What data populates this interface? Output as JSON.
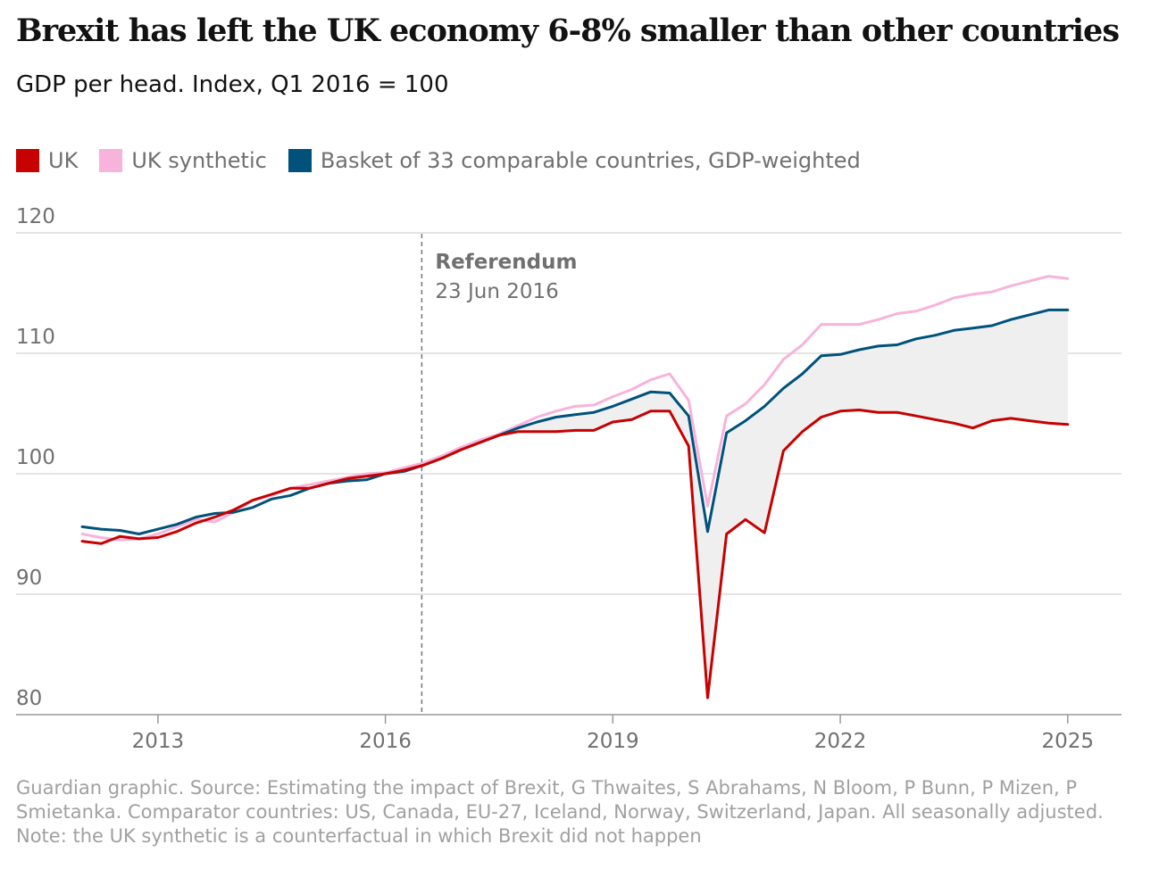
{
  "header": {
    "title": "Brexit has left the UK economy 6-8% smaller than other countries",
    "subtitle": "GDP per head. Index, Q1 2016 = 100"
  },
  "legend": [
    {
      "label": "UK",
      "color": "#c70000"
    },
    {
      "label": "UK synthetic",
      "color": "#f7b3db"
    },
    {
      "label": "Basket of 33 comparable countries, GDP-weighted",
      "color": "#00527a"
    }
  ],
  "annotation": {
    "title": "Referendum",
    "date": "23 Jun 2016"
  },
  "footnote": {
    "line1": "Guardian graphic. Source: Estimating the impact of Brexit, G Thwaites, S Abrahams, N Bloom, P Bunn, P Mizen, P",
    "line2": "Smietanka. Comparator countries: US, Canada, EU-27, Iceland, Norway, Switzerland, Japan. All seasonally adjusted.",
    "line3": "Note: the UK synthetic is a counterfactual in which Brexit did not happen"
  },
  "chart_data": {
    "type": "line",
    "ylim": [
      80,
      120
    ],
    "xlim": [
      2012.0,
      2025.25
    ],
    "yticks": [
      "120",
      "110",
      "100",
      "90",
      "80"
    ],
    "ytick_values": [
      120,
      110,
      100,
      90,
      80
    ],
    "xticks": [
      "2013",
      "2016",
      "2019",
      "2022",
      "2025"
    ],
    "xtick_values": [
      2013,
      2016,
      2019,
      2022,
      2025
    ],
    "grid": true,
    "referendum_x": 2016.48,
    "shaded_gap": "between UK and Basket",
    "series": [
      {
        "name": "UK synthetic",
        "color": "#f7b3db",
        "x": [
          2012.0,
          2012.25,
          2012.5,
          2012.75,
          2013.0,
          2013.25,
          2013.5,
          2013.75,
          2014.0,
          2014.25,
          2014.5,
          2014.75,
          2015.0,
          2015.25,
          2015.5,
          2015.75,
          2016.0,
          2016.25,
          2016.5,
          2016.75,
          2017.0,
          2017.25,
          2017.5,
          2017.75,
          2018.0,
          2018.25,
          2018.5,
          2018.75,
          2019.0,
          2019.25,
          2019.5,
          2019.75,
          2020.0,
          2020.25,
          2020.5,
          2020.75,
          2021.0,
          2021.25,
          2021.5,
          2021.75,
          2022.0,
          2022.25,
          2022.5,
          2022.75,
          2023.0,
          2023.25,
          2023.5,
          2023.75,
          2024.0,
          2024.25,
          2024.5,
          2024.75,
          2025.0
        ],
        "values": [
          95.0,
          94.7,
          94.5,
          94.6,
          95.0,
          95.6,
          96.2,
          96.0,
          96.8,
          97.8,
          98.2,
          98.8,
          99.1,
          99.4,
          99.7,
          100.0,
          100.1,
          100.5,
          100.9,
          101.5,
          102.2,
          102.8,
          103.3,
          104.0,
          104.7,
          105.2,
          105.6,
          105.7,
          106.4,
          107.0,
          107.8,
          108.3,
          106.1,
          97.3,
          104.8,
          105.8,
          107.4,
          109.5,
          110.7,
          112.4,
          112.4,
          112.4,
          112.8,
          113.3,
          113.5,
          114.0,
          114.6,
          114.9,
          115.1,
          115.6,
          116.0,
          116.4,
          116.2
        ]
      },
      {
        "name": "Basket of 33 comparable countries, GDP-weighted",
        "color": "#00527a",
        "x": [
          2012.0,
          2012.25,
          2012.5,
          2012.75,
          2013.0,
          2013.25,
          2013.5,
          2013.75,
          2014.0,
          2014.25,
          2014.5,
          2014.75,
          2015.0,
          2015.25,
          2015.5,
          2015.75,
          2016.0,
          2016.25,
          2016.5,
          2016.75,
          2017.0,
          2017.25,
          2017.5,
          2017.75,
          2018.0,
          2018.25,
          2018.5,
          2018.75,
          2019.0,
          2019.25,
          2019.5,
          2019.75,
          2020.0,
          2020.25,
          2020.5,
          2020.75,
          2021.0,
          2021.25,
          2021.5,
          2021.75,
          2022.0,
          2022.25,
          2022.5,
          2022.75,
          2023.0,
          2023.25,
          2023.5,
          2023.75,
          2024.0,
          2024.25,
          2024.5,
          2024.75,
          2025.0
        ],
        "values": [
          95.6,
          95.4,
          95.3,
          95.0,
          95.4,
          95.8,
          96.4,
          96.7,
          96.8,
          97.2,
          97.9,
          98.2,
          98.8,
          99.2,
          99.4,
          99.5,
          100.0,
          100.2,
          100.7,
          101.3,
          102.0,
          102.6,
          103.2,
          103.8,
          104.3,
          104.7,
          104.9,
          105.1,
          105.6,
          106.2,
          106.8,
          106.7,
          104.8,
          95.2,
          103.4,
          104.4,
          105.6,
          107.1,
          108.3,
          109.8,
          109.9,
          110.3,
          110.6,
          110.7,
          111.2,
          111.5,
          111.9,
          112.1,
          112.3,
          112.8,
          113.2,
          113.6,
          113.6
        ]
      },
      {
        "name": "UK",
        "color": "#c70000",
        "x": [
          2012.0,
          2012.25,
          2012.5,
          2012.75,
          2013.0,
          2013.25,
          2013.5,
          2013.75,
          2014.0,
          2014.25,
          2014.5,
          2014.75,
          2015.0,
          2015.25,
          2015.5,
          2015.75,
          2016.0,
          2016.25,
          2016.5,
          2016.75,
          2017.0,
          2017.25,
          2017.5,
          2017.75,
          2018.0,
          2018.25,
          2018.5,
          2018.75,
          2019.0,
          2019.25,
          2019.5,
          2019.75,
          2020.0,
          2020.25,
          2020.5,
          2020.75,
          2021.0,
          2021.25,
          2021.5,
          2021.75,
          2022.0,
          2022.25,
          2022.5,
          2022.75,
          2023.0,
          2023.25,
          2023.5,
          2023.75,
          2024.0,
          2024.25,
          2024.5,
          2024.75,
          2025.0
        ],
        "values": [
          94.4,
          94.2,
          94.8,
          94.6,
          94.7,
          95.2,
          95.9,
          96.4,
          97.0,
          97.8,
          98.3,
          98.8,
          98.8,
          99.2,
          99.6,
          99.8,
          100.0,
          100.3,
          100.7,
          101.3,
          102.0,
          102.6,
          103.2,
          103.5,
          103.5,
          103.5,
          103.6,
          103.6,
          104.3,
          104.5,
          105.2,
          105.2,
          102.3,
          81.4,
          95.0,
          96.2,
          95.1,
          101.9,
          103.5,
          104.7,
          105.2,
          105.3,
          105.1,
          105.1,
          104.8,
          104.5,
          104.2,
          103.8,
          104.4,
          104.6,
          104.4,
          104.2,
          104.1
        ]
      }
    ]
  }
}
